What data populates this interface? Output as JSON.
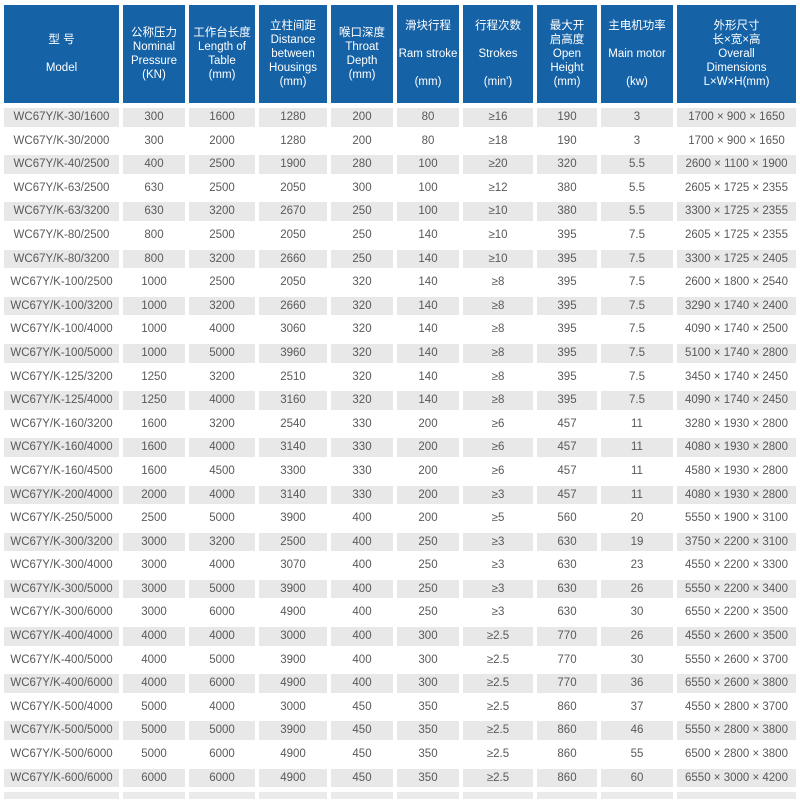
{
  "theme": {
    "header_bg": "#1562a7",
    "header_text": "#ffffff",
    "row_stripe_bg": "#e8e8e8",
    "cell_text": "#59595b"
  },
  "table": {
    "columns": [
      {
        "id": "model",
        "label": "型 号\n\nModel"
      },
      {
        "id": "nominal-pressure",
        "label": "公称压力\nNominal\nPressure\n(KN)"
      },
      {
        "id": "table-length",
        "label": "工作台长度\nLength of\nTable\n(mm)"
      },
      {
        "id": "housing-distance",
        "label": "立柱间距\nDistance\nbetween\nHousings\n(mm)"
      },
      {
        "id": "throat-depth",
        "label": "喉口深度\nThroat\nDepth\n(mm)"
      },
      {
        "id": "ram-stroke",
        "label": "滑块行程\n\nRam stroke\n\n(mm)"
      },
      {
        "id": "strokes",
        "label": "行程次数\n\nStrokes\n\n(min')"
      },
      {
        "id": "open-height",
        "label": "最大开\n启高度\nOpen\nHeight\n(mm)"
      },
      {
        "id": "main-motor",
        "label": "主电机功率\n\nMain motor\n\n(kw)"
      },
      {
        "id": "overall-dims",
        "label": "外形尺寸\n长×宽×高\nOverall\nDimensions\nL×W×H(mm)"
      }
    ],
    "rows": [
      [
        "WC67Y/K-30/1600",
        "300",
        "1600",
        "1280",
        "200",
        "80",
        "≥16",
        "190",
        "3",
        "1700 × 900 × 1650"
      ],
      [
        "WC67Y/K-30/2000",
        "300",
        "2000",
        "1280",
        "200",
        "80",
        "≥18",
        "190",
        "3",
        "1700 × 900 × 1650"
      ],
      [
        "WC67Y/K-40/2500",
        "400",
        "2500",
        "1900",
        "280",
        "100",
        "≥20",
        "320",
        "5.5",
        "2600 × 1100 × 1900"
      ],
      [
        "WC67Y/K-63/2500",
        "630",
        "2500",
        "2050",
        "300",
        "100",
        "≥12",
        "380",
        "5.5",
        "2605 × 1725 × 2355"
      ],
      [
        "WC67Y/K-63/3200",
        "630",
        "3200",
        "2670",
        "250",
        "100",
        "≥10",
        "380",
        "5.5",
        "3300 × 1725 × 2355"
      ],
      [
        "WC67Y/K-80/2500",
        "800",
        "2500",
        "2050",
        "250",
        "140",
        "≥10",
        "395",
        "7.5",
        "2605 × 1725 × 2355"
      ],
      [
        "WC67Y/K-80/3200",
        "800",
        "3200",
        "2660",
        "250",
        "140",
        "≥10",
        "395",
        "7.5",
        "3300 × 1725 × 2405"
      ],
      [
        "WC67Y/K-100/2500",
        "1000",
        "2500",
        "2050",
        "320",
        "140",
        "≥8",
        "395",
        "7.5",
        "2600 × 1800 × 2540"
      ],
      [
        "WC67Y/K-100/3200",
        "1000",
        "3200",
        "2660",
        "320",
        "140",
        "≥8",
        "395",
        "7.5",
        "3290 × 1740 × 2400"
      ],
      [
        "WC67Y/K-100/4000",
        "1000",
        "4000",
        "3060",
        "320",
        "140",
        "≥8",
        "395",
        "7.5",
        "4090 × 1740 × 2500"
      ],
      [
        "WC67Y/K-100/5000",
        "1000",
        "5000",
        "3960",
        "320",
        "140",
        "≥8",
        "395",
        "7.5",
        "5100 × 1740 × 2800"
      ],
      [
        "WC67Y/K-125/3200",
        "1250",
        "3200",
        "2510",
        "320",
        "140",
        "≥8",
        "395",
        "7.5",
        "3450 × 1740 × 2450"
      ],
      [
        "WC67Y/K-125/4000",
        "1250",
        "4000",
        "3160",
        "320",
        "140",
        "≥8",
        "395",
        "7.5",
        "4090 × 1740 × 2450"
      ],
      [
        "WC67Y/K-160/3200",
        "1600",
        "3200",
        "2540",
        "330",
        "200",
        "≥6",
        "457",
        "11",
        "3280 × 1930 × 2800"
      ],
      [
        "WC67Y/K-160/4000",
        "1600",
        "4000",
        "3140",
        "330",
        "200",
        "≥6",
        "457",
        "11",
        "4080 × 1930 × 2800"
      ],
      [
        "WC67Y/K-160/4500",
        "1600",
        "4500",
        "3300",
        "330",
        "200",
        "≥6",
        "457",
        "11",
        "4580 × 1930 × 2800"
      ],
      [
        "WC67Y/K-200/4000",
        "2000",
        "4000",
        "3140",
        "330",
        "200",
        "≥3",
        "457",
        "11",
        "4080 × 1930 × 2800"
      ],
      [
        "WC67Y/K-250/5000",
        "2500",
        "5000",
        "3900",
        "400",
        "200",
        "≥5",
        "560",
        "20",
        "5550 × 1900 × 3100"
      ],
      [
        "WC67Y/K-300/3200",
        "3000",
        "3200",
        "2500",
        "400",
        "250",
        "≥3",
        "630",
        "19",
        "3750 × 2200 × 3100"
      ],
      [
        "WC67Y/K-300/4000",
        "3000",
        "4000",
        "3070",
        "400",
        "250",
        "≥3",
        "630",
        "23",
        "4550 × 2200 × 3300"
      ],
      [
        "WC67Y/K-300/5000",
        "3000",
        "5000",
        "3900",
        "400",
        "250",
        "≥3",
        "630",
        "26",
        "5550 × 2200 × 3400"
      ],
      [
        "WC67Y/K-300/6000",
        "3000",
        "6000",
        "4900",
        "400",
        "250",
        "≥3",
        "630",
        "30",
        "6550 × 2200 × 3500"
      ],
      [
        "WC67Y/K-400/4000",
        "4000",
        "4000",
        "3000",
        "400",
        "300",
        "≥2.5",
        "770",
        "26",
        "4550 × 2600 × 3500"
      ],
      [
        "WC67Y/K-400/5000",
        "4000",
        "5000",
        "3900",
        "400",
        "300",
        "≥2.5",
        "770",
        "30",
        "5550 × 2600 × 3700"
      ],
      [
        "WC67Y/K-400/6000",
        "4000",
        "6000",
        "4900",
        "400",
        "300",
        "≥2.5",
        "770",
        "36",
        "6550 × 2600 × 3800"
      ],
      [
        "WC67Y/K-500/4000",
        "5000",
        "4000",
        "3000",
        "450",
        "350",
        "≥2.5",
        "860",
        "37",
        "4550 × 2800 × 3700"
      ],
      [
        "WC67Y/K-500/5000",
        "5000",
        "5000",
        "3900",
        "450",
        "350",
        "≥2.5",
        "860",
        "46",
        "5550 × 2800 × 3800"
      ],
      [
        "WC67Y/K-500/6000",
        "5000",
        "6000",
        "4900",
        "450",
        "350",
        "≥2.5",
        "860",
        "55",
        "6500 × 2800 × 3800"
      ],
      [
        "WC67Y/K-600/6000",
        "6000",
        "6000",
        "4900",
        "450",
        "350",
        "≥2.5",
        "860",
        "60",
        "6550 × 3000 × 4200"
      ]
    ],
    "partial_row_visible": true
  }
}
